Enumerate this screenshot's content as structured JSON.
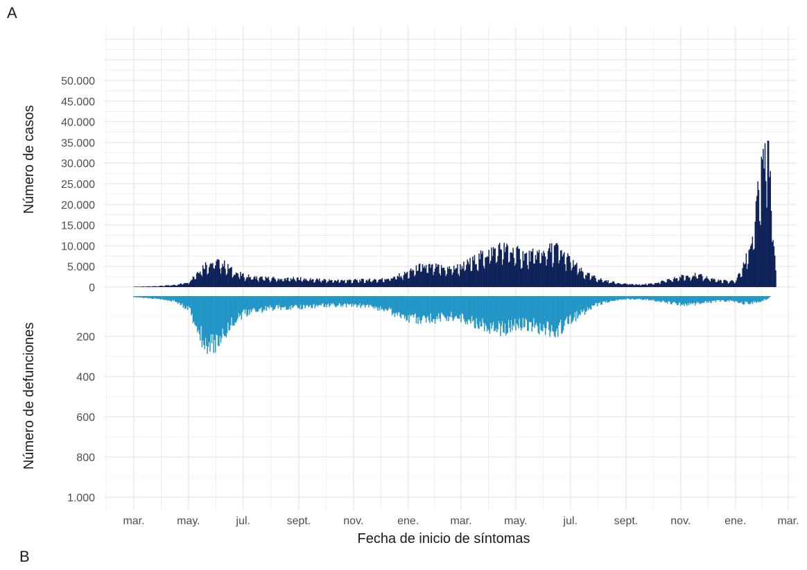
{
  "figure": {
    "panel_a": "A",
    "panel_b": "B"
  },
  "colors": {
    "cases": "#0d2158",
    "deaths": "#2196c6",
    "grid": "#ebebeb"
  },
  "chart_data": [
    {
      "type": "bar",
      "ylabel": "Número de casos",
      "ylim": [
        0,
        55000
      ],
      "yticks": [
        0,
        5000,
        10000,
        15000,
        20000,
        25000,
        30000,
        35000,
        40000,
        45000,
        50000
      ],
      "ytick_labels": [
        "0",
        "5.000",
        "10.000",
        "15.000",
        "20.000",
        "25.000",
        "30.000",
        "35.000",
        "40.000",
        "45.000",
        "50.000"
      ],
      "series": [
        {
          "color": "#0d2158",
          "x": [
            "2020-03-01",
            "2020-03-15",
            "2020-04-01",
            "2020-04-15",
            "2020-05-01",
            "2020-05-10",
            "2020-05-20",
            "2020-06-01",
            "2020-06-10",
            "2020-06-20",
            "2020-07-01",
            "2020-07-15",
            "2020-08-01",
            "2020-08-15",
            "2020-09-01",
            "2020-09-15",
            "2020-10-01",
            "2020-10-15",
            "2020-11-01",
            "2020-11-15",
            "2020-12-01",
            "2020-12-15",
            "2021-01-01",
            "2021-01-15",
            "2021-02-01",
            "2021-02-15",
            "2021-03-01",
            "2021-03-15",
            "2021-04-01",
            "2021-04-15",
            "2021-05-01",
            "2021-05-15",
            "2021-06-01",
            "2021-06-15",
            "2021-07-01",
            "2021-07-15",
            "2021-08-01",
            "2021-08-15",
            "2021-09-01",
            "2021-09-15",
            "2021-10-01",
            "2021-10-15",
            "2021-11-01",
            "2021-11-15",
            "2021-12-01",
            "2021-12-15",
            "2022-01-01",
            "2022-01-10",
            "2022-01-20",
            "2022-01-25",
            "2022-02-01",
            "2022-02-05",
            "2022-02-10",
            "2022-02-15"
          ],
          "values": [
            100,
            150,
            300,
            500,
            1200,
            3500,
            5500,
            6200,
            5500,
            3800,
            2800,
            2300,
            2100,
            2000,
            2100,
            1900,
            1700,
            1600,
            1700,
            1700,
            1900,
            2300,
            3500,
            5000,
            4800,
            4500,
            5000,
            6500,
            8500,
            9500,
            8500,
            7500,
            8500,
            9500,
            6500,
            3500,
            2000,
            1300,
            800,
            600,
            900,
            1500,
            2500,
            3000,
            2300,
            1500,
            1500,
            5000,
            12000,
            20000,
            30000,
            35000,
            22000,
            4000
          ]
        }
      ]
    },
    {
      "type": "bar",
      "xlabel": "Fecha de inicio de síntomas",
      "ylabel": "Número de defunciones",
      "ylim": [
        0,
        1000
      ],
      "y_inverted": true,
      "yticks": [
        200,
        400,
        600,
        800,
        1000
      ],
      "ytick_labels": [
        "200",
        "400",
        "600",
        "800",
        "1.000"
      ],
      "xticks": [
        "2020-03-01",
        "2020-05-01",
        "2020-07-01",
        "2020-09-01",
        "2020-11-01",
        "2021-01-01",
        "2021-03-01",
        "2021-05-01",
        "2021-07-01",
        "2021-09-01",
        "2021-11-01",
        "2022-01-01",
        "2022-03-01"
      ],
      "xtick_labels": [
        "mar.",
        "may.",
        "jul.",
        "sept.",
        "nov.",
        "ene.",
        "mar.",
        "may.",
        "jul.",
        "sept.",
        "nov.",
        "ene.",
        "mar."
      ],
      "series": [
        {
          "color": "#2196c6",
          "x": [
            "2020-03-01",
            "2020-03-15",
            "2020-04-01",
            "2020-04-15",
            "2020-05-01",
            "2020-05-10",
            "2020-05-20",
            "2020-06-01",
            "2020-06-10",
            "2020-06-20",
            "2020-07-01",
            "2020-07-15",
            "2020-08-01",
            "2020-08-15",
            "2020-09-01",
            "2020-09-15",
            "2020-10-01",
            "2020-10-15",
            "2020-11-01",
            "2020-11-15",
            "2020-12-01",
            "2020-12-15",
            "2021-01-01",
            "2021-01-15",
            "2021-02-01",
            "2021-02-15",
            "2021-03-01",
            "2021-03-15",
            "2021-04-01",
            "2021-04-15",
            "2021-05-01",
            "2021-05-15",
            "2021-06-01",
            "2021-06-15",
            "2021-07-01",
            "2021-07-15",
            "2021-08-01",
            "2021-08-15",
            "2021-09-01",
            "2021-09-15",
            "2021-10-01",
            "2021-10-15",
            "2021-11-01",
            "2021-11-15",
            "2021-12-01",
            "2021-12-15",
            "2022-01-01",
            "2022-01-10",
            "2022-01-20",
            "2022-01-25",
            "2022-02-01",
            "2022-02-05",
            "2022-02-10",
            "2022-02-15"
          ],
          "values": [
            5,
            10,
            15,
            25,
            60,
            150,
            240,
            230,
            180,
            120,
            90,
            70,
            60,
            55,
            55,
            50,
            45,
            45,
            45,
            50,
            60,
            80,
            110,
            120,
            110,
            100,
            110,
            130,
            150,
            160,
            150,
            140,
            160,
            170,
            120,
            80,
            40,
            25,
            15,
            15,
            20,
            30,
            40,
            40,
            30,
            25,
            25,
            35,
            35,
            30,
            20,
            15,
            0,
            0
          ]
        }
      ]
    }
  ]
}
